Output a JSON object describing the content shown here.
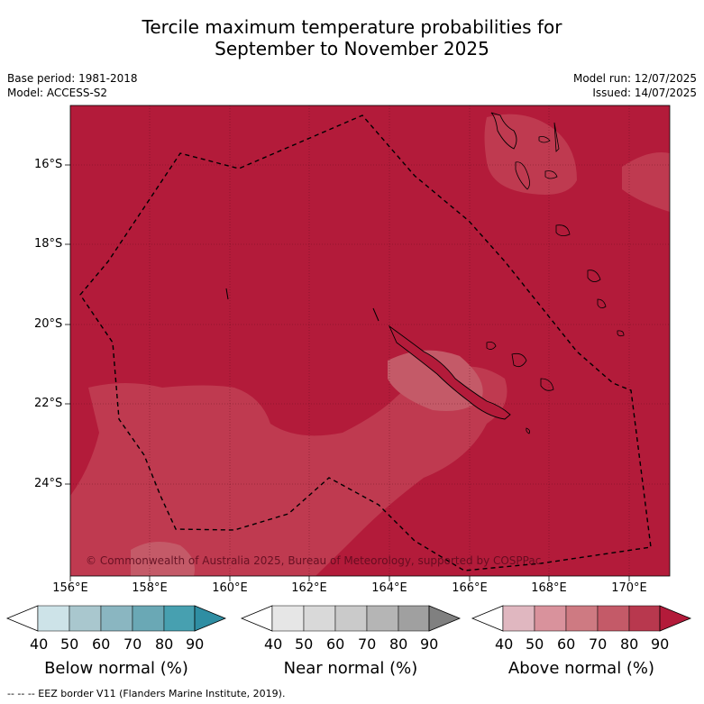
{
  "header": {
    "title_line1": "Tercile maximum temperature probabilities for",
    "title_line2": "September to November 2025",
    "base_period": "Base period: 1981-2018",
    "model": "Model: ACCESS-S2",
    "model_run": "Model run: 12/07/2025",
    "issued": "Issued: 14/07/2025"
  },
  "map": {
    "copyright": "© Commonwealth of Australia 2025, Bureau of Meteorology, supported by COSPPac",
    "lat_labels": [
      "16°S",
      "18°S",
      "20°S",
      "22°S",
      "24°S"
    ],
    "lon_labels": [
      "156°E",
      "158°E",
      "160°E",
      "162°E",
      "164°E",
      "166°E",
      "168°E",
      "170°E"
    ],
    "colors": {
      "above_80_90": "#b31b3a",
      "above_70_80": "#bf3a50"
    }
  },
  "colorbars": [
    {
      "title": "Below normal (%)",
      "ticks": [
        "40",
        "50",
        "60",
        "70",
        "80",
        "90"
      ],
      "colors": [
        "#ffffff",
        "#cde3e8",
        "#a9c7ce",
        "#8ab6c1",
        "#6aa8b5",
        "#47a0b0",
        "#2f8ea3"
      ]
    },
    {
      "title": "Near normal (%)",
      "ticks": [
        "40",
        "50",
        "60",
        "70",
        "80",
        "90"
      ],
      "colors": [
        "#ffffff",
        "#e6e6e6",
        "#d9d9d9",
        "#cacaca",
        "#b5b5b5",
        "#a0a0a0",
        "#808080"
      ]
    },
    {
      "title": "Above normal (%)",
      "ticks": [
        "40",
        "50",
        "60",
        "70",
        "80",
        "90"
      ],
      "colors": [
        "#ffffff",
        "#e0b7c0",
        "#d9929c",
        "#ce7a82",
        "#c45a68",
        "#b8384e",
        "#b31b3a"
      ]
    }
  ],
  "footnote": "-- -- -- EEZ border V11 (Flanders Marine Institute, 2019)."
}
